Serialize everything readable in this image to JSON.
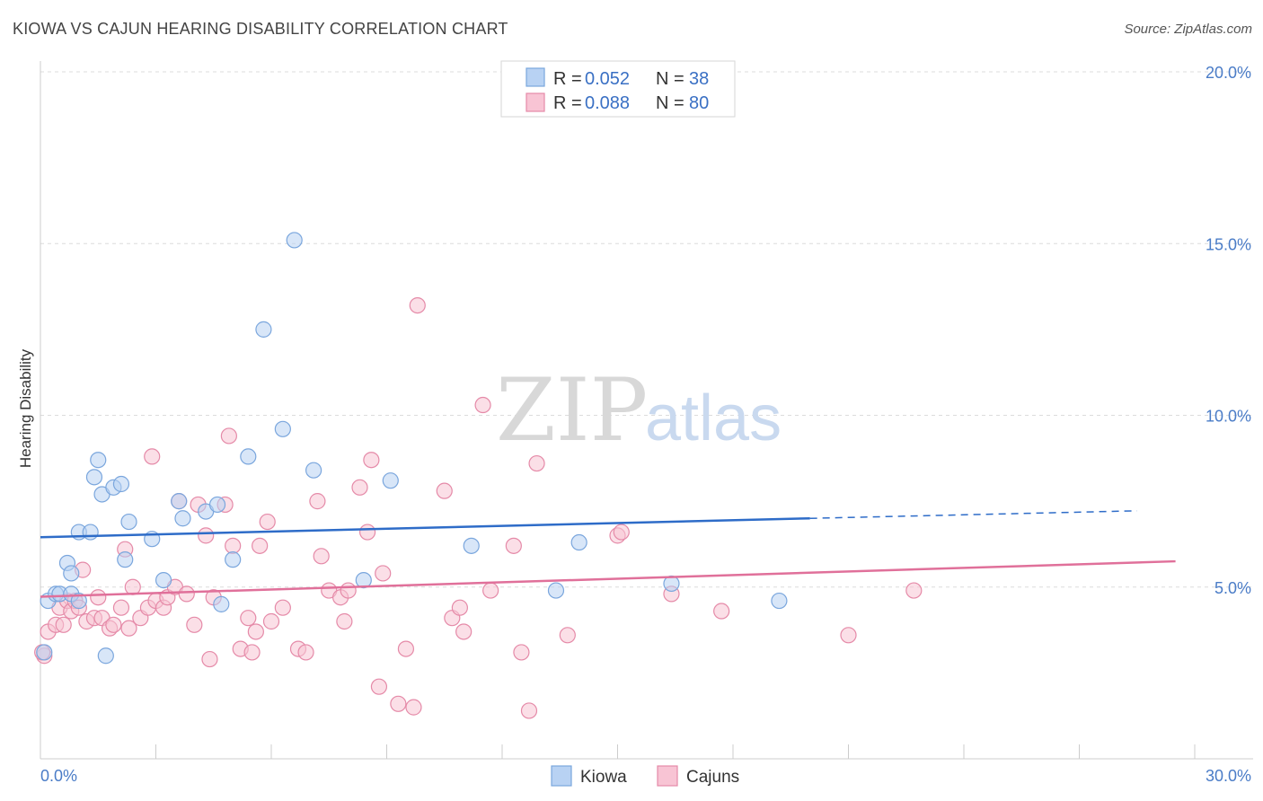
{
  "header": {
    "title": "KIOWA VS CAJUN HEARING DISABILITY CORRELATION CHART",
    "source": "Source: ZipAtlas.com"
  },
  "watermark": {
    "zip": "ZIP",
    "atlas": "atlas"
  },
  "colors": {
    "kiowa_fill": "#b8d2f3",
    "kiowa_stroke": "#7aa6dd",
    "kiowa_line": "#2e6cc8",
    "cajun_fill": "#f8c4d4",
    "cajun_stroke": "#e58aa8",
    "cajun_line": "#e0709a",
    "grid": "#dcdcdc",
    "tick_text": "#4a7cc7"
  },
  "legend": {
    "rows": [
      {
        "r_label": "R = ",
        "r_value": "0.052",
        "n_label": "N = ",
        "n_value": "38"
      },
      {
        "r_label": "R = ",
        "r_value": "0.088",
        "n_label": "N = ",
        "n_value": "80"
      }
    ]
  },
  "chart_data": {
    "type": "scatter",
    "title": "KIOWA VS CAJUN HEARING DISABILITY CORRELATION CHART",
    "xlabel": "",
    "ylabel": "Hearing Disability",
    "xlim": [
      0,
      30
    ],
    "ylim": [
      0,
      20
    ],
    "x_tick_labels": [
      "0.0%",
      "30.0%"
    ],
    "y_ticks": [
      5,
      10,
      15,
      20
    ],
    "y_tick_labels": [
      "5.0%",
      "10.0%",
      "15.0%",
      "20.0%"
    ],
    "grid": true,
    "legend_position": "top-center",
    "series": [
      {
        "name": "Kiowa",
        "r": 0.052,
        "n": 38,
        "trend": {
          "x0": 0,
          "y0": 6.45,
          "x1": 20.0,
          "y1": 7.0,
          "dashed_to_x": 28.5,
          "dashed_to_y": 7.22
        },
        "points": [
          [
            0.2,
            4.6
          ],
          [
            0.4,
            4.8
          ],
          [
            0.5,
            4.8
          ],
          [
            0.7,
            5.7
          ],
          [
            0.8,
            5.4
          ],
          [
            0.8,
            4.8
          ],
          [
            1.0,
            4.6
          ],
          [
            1.0,
            6.6
          ],
          [
            1.3,
            6.6
          ],
          [
            1.4,
            8.2
          ],
          [
            1.5,
            8.7
          ],
          [
            1.6,
            7.7
          ],
          [
            1.7,
            3.0
          ],
          [
            1.9,
            7.9
          ],
          [
            2.1,
            8.0
          ],
          [
            2.2,
            5.8
          ],
          [
            2.3,
            6.9
          ],
          [
            2.9,
            6.4
          ],
          [
            3.2,
            5.2
          ],
          [
            3.6,
            7.5
          ],
          [
            3.7,
            7.0
          ],
          [
            4.3,
            7.2
          ],
          [
            4.6,
            7.4
          ],
          [
            4.7,
            4.5
          ],
          [
            5.0,
            5.8
          ],
          [
            5.4,
            8.8
          ],
          [
            5.8,
            12.5
          ],
          [
            6.6,
            15.1
          ],
          [
            6.3,
            9.6
          ],
          [
            7.1,
            8.4
          ],
          [
            8.4,
            5.2
          ],
          [
            9.1,
            8.1
          ],
          [
            11.2,
            6.2
          ],
          [
            13.4,
            4.9
          ],
          [
            14.0,
            6.3
          ],
          [
            16.4,
            5.1
          ],
          [
            19.2,
            4.6
          ],
          [
            0.1,
            3.1
          ]
        ]
      },
      {
        "name": "Cajuns",
        "r": 0.088,
        "n": 80,
        "trend": {
          "x0": 0,
          "y0": 4.72,
          "x1": 29.5,
          "y1": 5.75
        },
        "points": [
          [
            0.1,
            3.0
          ],
          [
            0.2,
            3.7
          ],
          [
            0.4,
            3.9
          ],
          [
            0.5,
            4.4
          ],
          [
            0.6,
            3.9
          ],
          [
            0.7,
            4.6
          ],
          [
            0.8,
            4.3
          ],
          [
            0.9,
            4.6
          ],
          [
            1.0,
            4.4
          ],
          [
            1.1,
            5.5
          ],
          [
            1.2,
            4.0
          ],
          [
            1.4,
            4.1
          ],
          [
            1.5,
            4.7
          ],
          [
            1.6,
            4.1
          ],
          [
            1.8,
            3.8
          ],
          [
            1.9,
            3.9
          ],
          [
            2.1,
            4.4
          ],
          [
            2.2,
            6.1
          ],
          [
            2.3,
            3.8
          ],
          [
            2.4,
            5.0
          ],
          [
            2.6,
            4.1
          ],
          [
            2.8,
            4.4
          ],
          [
            2.9,
            8.8
          ],
          [
            3.0,
            4.6
          ],
          [
            3.2,
            4.4
          ],
          [
            3.3,
            4.7
          ],
          [
            3.5,
            5.0
          ],
          [
            3.6,
            7.5
          ],
          [
            3.8,
            4.8
          ],
          [
            4.0,
            3.9
          ],
          [
            4.1,
            7.4
          ],
          [
            4.3,
            6.5
          ],
          [
            4.4,
            2.9
          ],
          [
            4.5,
            4.7
          ],
          [
            4.8,
            7.4
          ],
          [
            4.9,
            9.4
          ],
          [
            5.0,
            6.2
          ],
          [
            5.2,
            3.2
          ],
          [
            5.4,
            4.1
          ],
          [
            5.5,
            3.1
          ],
          [
            5.6,
            3.7
          ],
          [
            5.7,
            6.2
          ],
          [
            5.9,
            6.9
          ],
          [
            6.0,
            4.0
          ],
          [
            6.3,
            4.4
          ],
          [
            6.7,
            3.2
          ],
          [
            6.9,
            3.1
          ],
          [
            7.2,
            7.5
          ],
          [
            7.3,
            5.9
          ],
          [
            7.5,
            4.9
          ],
          [
            7.8,
            4.7
          ],
          [
            7.9,
            4.0
          ],
          [
            8.0,
            4.9
          ],
          [
            8.3,
            7.9
          ],
          [
            8.5,
            6.6
          ],
          [
            8.6,
            8.7
          ],
          [
            8.8,
            2.1
          ],
          [
            8.9,
            5.4
          ],
          [
            9.3,
            1.6
          ],
          [
            9.5,
            3.2
          ],
          [
            9.7,
            1.5
          ],
          [
            9.8,
            13.2
          ],
          [
            10.5,
            7.8
          ],
          [
            10.7,
            4.1
          ],
          [
            10.9,
            4.4
          ],
          [
            11.0,
            3.7
          ],
          [
            11.5,
            10.3
          ],
          [
            11.7,
            4.9
          ],
          [
            12.3,
            6.2
          ],
          [
            12.5,
            3.1
          ],
          [
            12.7,
            1.4
          ],
          [
            12.9,
            8.6
          ],
          [
            13.7,
            3.6
          ],
          [
            15.0,
            6.5
          ],
          [
            15.1,
            6.6
          ],
          [
            16.4,
            4.8
          ],
          [
            17.7,
            4.3
          ],
          [
            21.0,
            3.6
          ],
          [
            22.7,
            4.9
          ],
          [
            0.05,
            3.1
          ]
        ]
      }
    ]
  },
  "bottom_legend": {
    "items": [
      "Kiowa",
      "Cajuns"
    ]
  }
}
